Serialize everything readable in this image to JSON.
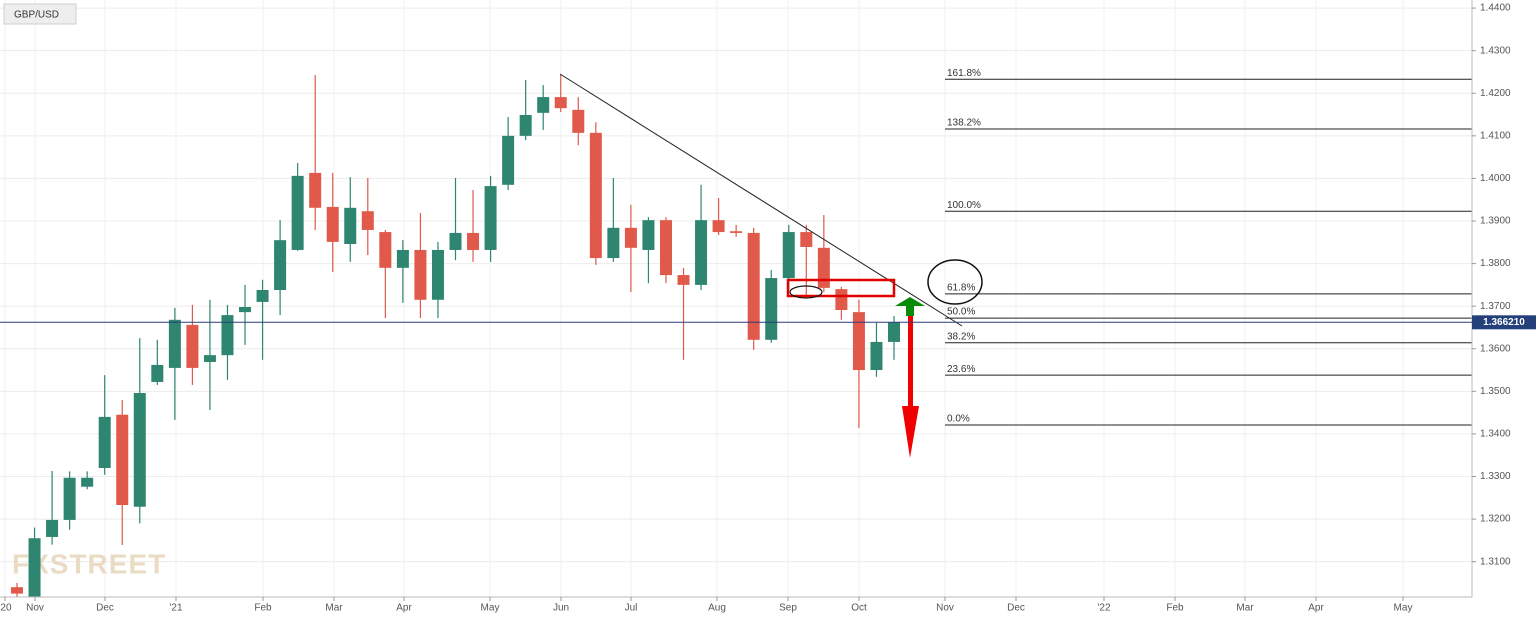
{
  "chart_data": {
    "type": "candlestick",
    "title": "GBP/USD",
    "watermark": "FXSTREET",
    "categories": [
      null,
      null,
      null,
      null,
      null,
      null,
      null,
      null,
      null,
      null,
      null,
      null,
      null,
      null,
      null,
      null,
      null,
      null,
      null,
      null,
      null,
      null,
      null,
      null,
      null,
      null,
      null,
      null,
      null,
      null,
      null,
      null,
      null,
      null,
      null,
      null,
      null,
      null,
      null,
      null,
      null,
      null,
      null,
      null,
      null,
      null,
      null,
      null,
      null,
      null,
      null
    ],
    "open": [
      1.304,
      1.3,
      1.3158,
      1.3198,
      1.3276,
      1.332,
      1.3445,
      1.3229,
      1.3522,
      1.3555,
      1.3656,
      1.3569,
      1.3585,
      1.3686,
      1.371,
      1.3738,
      1.3832,
      1.4013,
      1.3933,
      1.3846,
      1.3923,
      1.3874,
      1.379,
      1.3832,
      1.3715,
      1.3832,
      1.3872,
      1.3832,
      1.3985,
      1.41,
      1.4154,
      1.4191,
      1.4161,
      1.4107,
      1.3813,
      1.3884,
      1.3832,
      1.3902,
      1.3773,
      1.375,
      1.3902,
      1.3876,
      1.3872,
      1.3621,
      1.3766,
      1.3874,
      1.3837,
      1.374,
      1.3686,
      1.355,
      1.3616
    ],
    "high": [
      1.305,
      1.318,
      1.3313,
      1.3312,
      1.3312,
      1.3538,
      1.348,
      1.3625,
      1.3621,
      1.3696,
      1.3703,
      1.3715,
      1.3703,
      1.375,
      1.3762,
      1.3902,
      1.4036,
      1.4243,
      1.4013,
      1.4003,
      1.4001,
      1.3879,
      1.3855,
      1.3919,
      1.3851,
      1.4001,
      1.3973,
      1.4006,
      1.4144,
      1.4231,
      1.4219,
      1.4243,
      1.4191,
      1.4132,
      1.4001,
      1.3938,
      1.3909,
      1.3909,
      1.379,
      1.3985,
      1.3954,
      1.3891,
      1.3884,
      1.3785,
      1.3891,
      1.3891,
      1.3914,
      1.3745,
      1.3715,
      1.3661,
      1.3677
    ],
    "low": [
      1.299,
      1.299,
      1.314,
      1.3175,
      1.327,
      1.3304,
      1.3139,
      1.319,
      1.3515,
      1.3433,
      1.3515,
      1.3456,
      1.3527,
      1.3609,
      1.3574,
      1.3679,
      1.383,
      1.3879,
      1.378,
      1.3804,
      1.382,
      1.3672,
      1.3708,
      1.3672,
      1.3672,
      1.3808,
      1.3804,
      1.3804,
      1.3973,
      1.409,
      1.4114,
      1.4156,
      1.4078,
      1.3797,
      1.3804,
      1.3733,
      1.3754,
      1.3754,
      1.3574,
      1.3738,
      1.3867,
      1.3863,
      1.3597,
      1.3614,
      1.3738,
      1.3719,
      1.3733,
      1.3668,
      1.3414,
      1.3534,
      1.3574
    ],
    "close": [
      1.3025,
      1.3155,
      1.3198,
      1.3297,
      1.3297,
      1.344,
      1.3233,
      1.3496,
      1.3562,
      1.3668,
      1.3555,
      1.3585,
      1.3679,
      1.3698,
      1.3738,
      1.3855,
      1.4006,
      1.3931,
      1.3851,
      1.3931,
      1.3879,
      1.379,
      1.3832,
      1.3715,
      1.3832,
      1.3872,
      1.3832,
      1.3982,
      1.41,
      1.4149,
      1.4191,
      1.4165,
      1.4107,
      1.3813,
      1.3884,
      1.3837,
      1.3902,
      1.3773,
      1.375,
      1.3902,
      1.3874,
      1.3872,
      1.3621,
      1.3766,
      1.3874,
      1.3839,
      1.3743,
      1.3691,
      1.355,
      1.3616,
      1.3662
    ],
    "up_color": "#2e8570",
    "down_color": "#e0594a",
    "ylim": [
      1.3017,
      1.4419
    ],
    "yticks": [
      {
        "value": 1.44,
        "label": "1.4400"
      },
      {
        "value": 1.43,
        "label": "1.4300"
      },
      {
        "value": 1.42,
        "label": "1.4200"
      },
      {
        "value": 1.41,
        "label": "1.4100"
      },
      {
        "value": 1.4,
        "label": "1.4000"
      },
      {
        "value": 1.39,
        "label": "1.3900"
      },
      {
        "value": 1.38,
        "label": "1.3800"
      },
      {
        "value": 1.37,
        "label": "1.3700"
      },
      {
        "value": 1.36,
        "label": "1.3600"
      },
      {
        "value": 1.35,
        "label": "1.3500"
      },
      {
        "value": 1.34,
        "label": "1.3400"
      },
      {
        "value": 1.33,
        "label": "1.3300"
      },
      {
        "value": 1.32,
        "label": "1.3200"
      },
      {
        "value": 1.31,
        "label": "1.3100"
      }
    ],
    "current_price": {
      "value": 1.36621,
      "label": "1.366210"
    },
    "x_axis_labels": [
      "'20",
      "Nov",
      "Dec",
      "'21",
      "Feb",
      "Mar",
      "Apr",
      "May",
      "Jun",
      "Jul",
      "Aug",
      "Sep",
      "Oct",
      "Nov",
      "Dec",
      "'22",
      "Feb",
      "Mar",
      "Apr",
      "May"
    ],
    "fib_levels": [
      {
        "label": "161.8%",
        "value": 1.4233
      },
      {
        "label": "138.2%",
        "value": 1.4116
      },
      {
        "label": "100.0%",
        "value": 1.3923
      },
      {
        "label": "61.8%",
        "value": 1.3729
      },
      {
        "label": "50.0%",
        "value": 1.3672
      },
      {
        "label": "38.2%",
        "value": 1.3614
      },
      {
        "label": "23.6%",
        "value": 1.3538
      },
      {
        "label": "0.0%",
        "value": 1.3421
      }
    ],
    "grid": true
  }
}
